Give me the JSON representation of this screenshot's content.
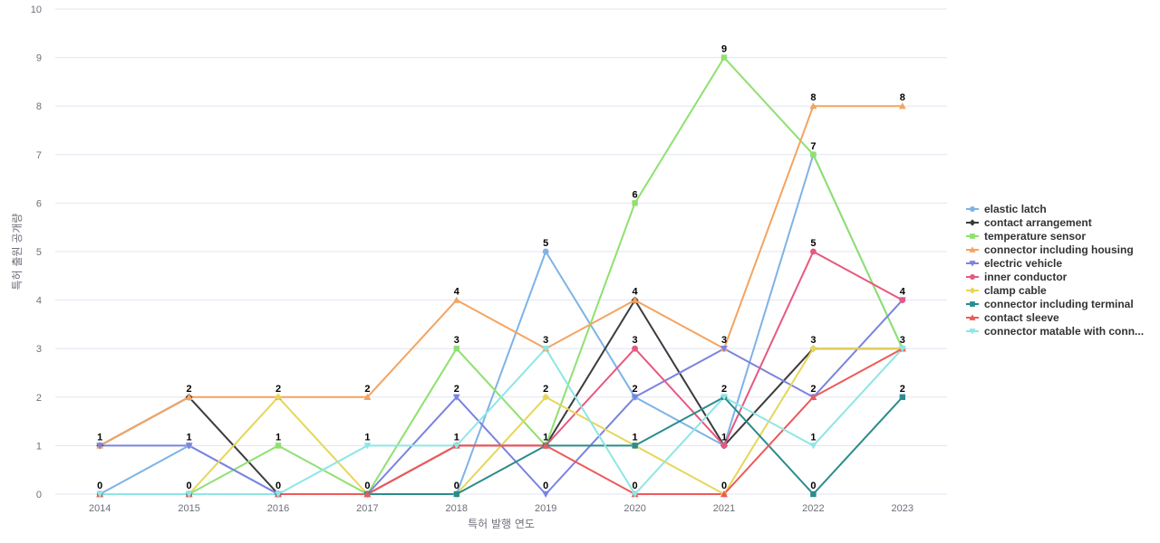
{
  "chart_data": {
    "type": "line",
    "title": "",
    "xlabel": "특허 발행 연도",
    "ylabel": "특허 출원 공개량",
    "ylim": [
      0,
      10
    ],
    "yticks": [
      0,
      1,
      2,
      3,
      4,
      5,
      6,
      7,
      8,
      9,
      10
    ],
    "grid": true,
    "legend_position": "right",
    "categories": [
      "2014",
      "2015",
      "2016",
      "2017",
      "2018",
      "2019",
      "2020",
      "2021",
      "2022",
      "2023"
    ],
    "series": [
      {
        "name": "elastic latch",
        "color": "#7eb3e6",
        "marker": "circle",
        "values": [
          0,
          1,
          0,
          0,
          0,
          5,
          2,
          1,
          7,
          3
        ]
      },
      {
        "name": "contact arrangement",
        "color": "#3c3c3c",
        "marker": "diamond",
        "values": [
          1,
          2,
          0,
          0,
          1,
          1,
          4,
          1,
          3,
          3
        ]
      },
      {
        "name": "temperature sensor",
        "color": "#90e070",
        "marker": "square",
        "values": [
          0,
          0,
          1,
          0,
          3,
          1,
          6,
          9,
          7,
          3
        ]
      },
      {
        "name": "connector including housing",
        "color": "#f4a460",
        "marker": "triangle",
        "values": [
          1,
          2,
          2,
          2,
          4,
          3,
          4,
          3,
          8,
          8
        ]
      },
      {
        "name": "electric vehicle",
        "color": "#7b83e0",
        "marker": "triangle-down",
        "values": [
          1,
          1,
          0,
          0,
          2,
          0,
          2,
          3,
          2,
          4
        ]
      },
      {
        "name": "inner conductor",
        "color": "#e8587e",
        "marker": "circle",
        "values": [
          0,
          0,
          0,
          0,
          1,
          1,
          3,
          1,
          5,
          4
        ]
      },
      {
        "name": "clamp cable",
        "color": "#e6d65a",
        "marker": "diamond",
        "values": [
          0,
          0,
          2,
          0,
          0,
          2,
          1,
          0,
          3,
          3
        ]
      },
      {
        "name": "connector including terminal",
        "color": "#2a8c8c",
        "marker": "square",
        "values": [
          0,
          0,
          0,
          0,
          0,
          1,
          1,
          2,
          0,
          2
        ]
      },
      {
        "name": "contact sleeve",
        "color": "#ec5a5a",
        "marker": "triangle",
        "values": [
          0,
          0,
          0,
          0,
          1,
          1,
          0,
          0,
          2,
          3
        ]
      },
      {
        "name": "connector matable with conn...",
        "color": "#8ee6e6",
        "marker": "triangle-down",
        "values": [
          0,
          0,
          0,
          1,
          1,
          3,
          0,
          2,
          1,
          3
        ]
      }
    ],
    "data_labels": [
      {
        "x": "2014",
        "y": 1,
        "text": "1"
      },
      {
        "x": "2014",
        "y": 0,
        "text": "0"
      },
      {
        "x": "2015",
        "y": 2,
        "text": "2"
      },
      {
        "x": "2015",
        "y": 1,
        "text": "1"
      },
      {
        "x": "2015",
        "y": 0,
        "text": "0"
      },
      {
        "x": "2016",
        "y": 2,
        "text": "2"
      },
      {
        "x": "2016",
        "y": 1,
        "text": "1"
      },
      {
        "x": "2016",
        "y": 0,
        "text": "0"
      },
      {
        "x": "2017",
        "y": 2,
        "text": "2"
      },
      {
        "x": "2017",
        "y": 1,
        "text": "1"
      },
      {
        "x": "2017",
        "y": 0,
        "text": "0"
      },
      {
        "x": "2018",
        "y": 4,
        "text": "4"
      },
      {
        "x": "2018",
        "y": 3,
        "text": "3"
      },
      {
        "x": "2018",
        "y": 2,
        "text": "2"
      },
      {
        "x": "2018",
        "y": 1,
        "text": "1"
      },
      {
        "x": "2018",
        "y": 0,
        "text": "0"
      },
      {
        "x": "2019",
        "y": 5,
        "text": "5"
      },
      {
        "x": "2019",
        "y": 3,
        "text": "3"
      },
      {
        "x": "2019",
        "y": 2,
        "text": "2"
      },
      {
        "x": "2019",
        "y": 1,
        "text": "1"
      },
      {
        "x": "2019",
        "y": 0,
        "text": "0"
      },
      {
        "x": "2020",
        "y": 6,
        "text": "6"
      },
      {
        "x": "2020",
        "y": 4,
        "text": "4"
      },
      {
        "x": "2020",
        "y": 3,
        "text": "3"
      },
      {
        "x": "2020",
        "y": 2,
        "text": "2"
      },
      {
        "x": "2020",
        "y": 1,
        "text": "1"
      },
      {
        "x": "2020",
        "y": 0,
        "text": "0"
      },
      {
        "x": "2021",
        "y": 9,
        "text": "9"
      },
      {
        "x": "2021",
        "y": 3,
        "text": "3"
      },
      {
        "x": "2021",
        "y": 2,
        "text": "2"
      },
      {
        "x": "2021",
        "y": 1,
        "text": "1"
      },
      {
        "x": "2021",
        "y": 0,
        "text": "0"
      },
      {
        "x": "2022",
        "y": 8,
        "text": "8"
      },
      {
        "x": "2022",
        "y": 7,
        "text": "7"
      },
      {
        "x": "2022",
        "y": 5,
        "text": "5"
      },
      {
        "x": "2022",
        "y": 3,
        "text": "3"
      },
      {
        "x": "2022",
        "y": 2,
        "text": "2"
      },
      {
        "x": "2022",
        "y": 1,
        "text": "1"
      },
      {
        "x": "2022",
        "y": 0,
        "text": "0"
      },
      {
        "x": "2023",
        "y": 8,
        "text": "8"
      },
      {
        "x": "2023",
        "y": 4,
        "text": "4"
      },
      {
        "x": "2023",
        "y": 3,
        "text": "3"
      },
      {
        "x": "2023",
        "y": 2,
        "text": "2"
      }
    ]
  }
}
